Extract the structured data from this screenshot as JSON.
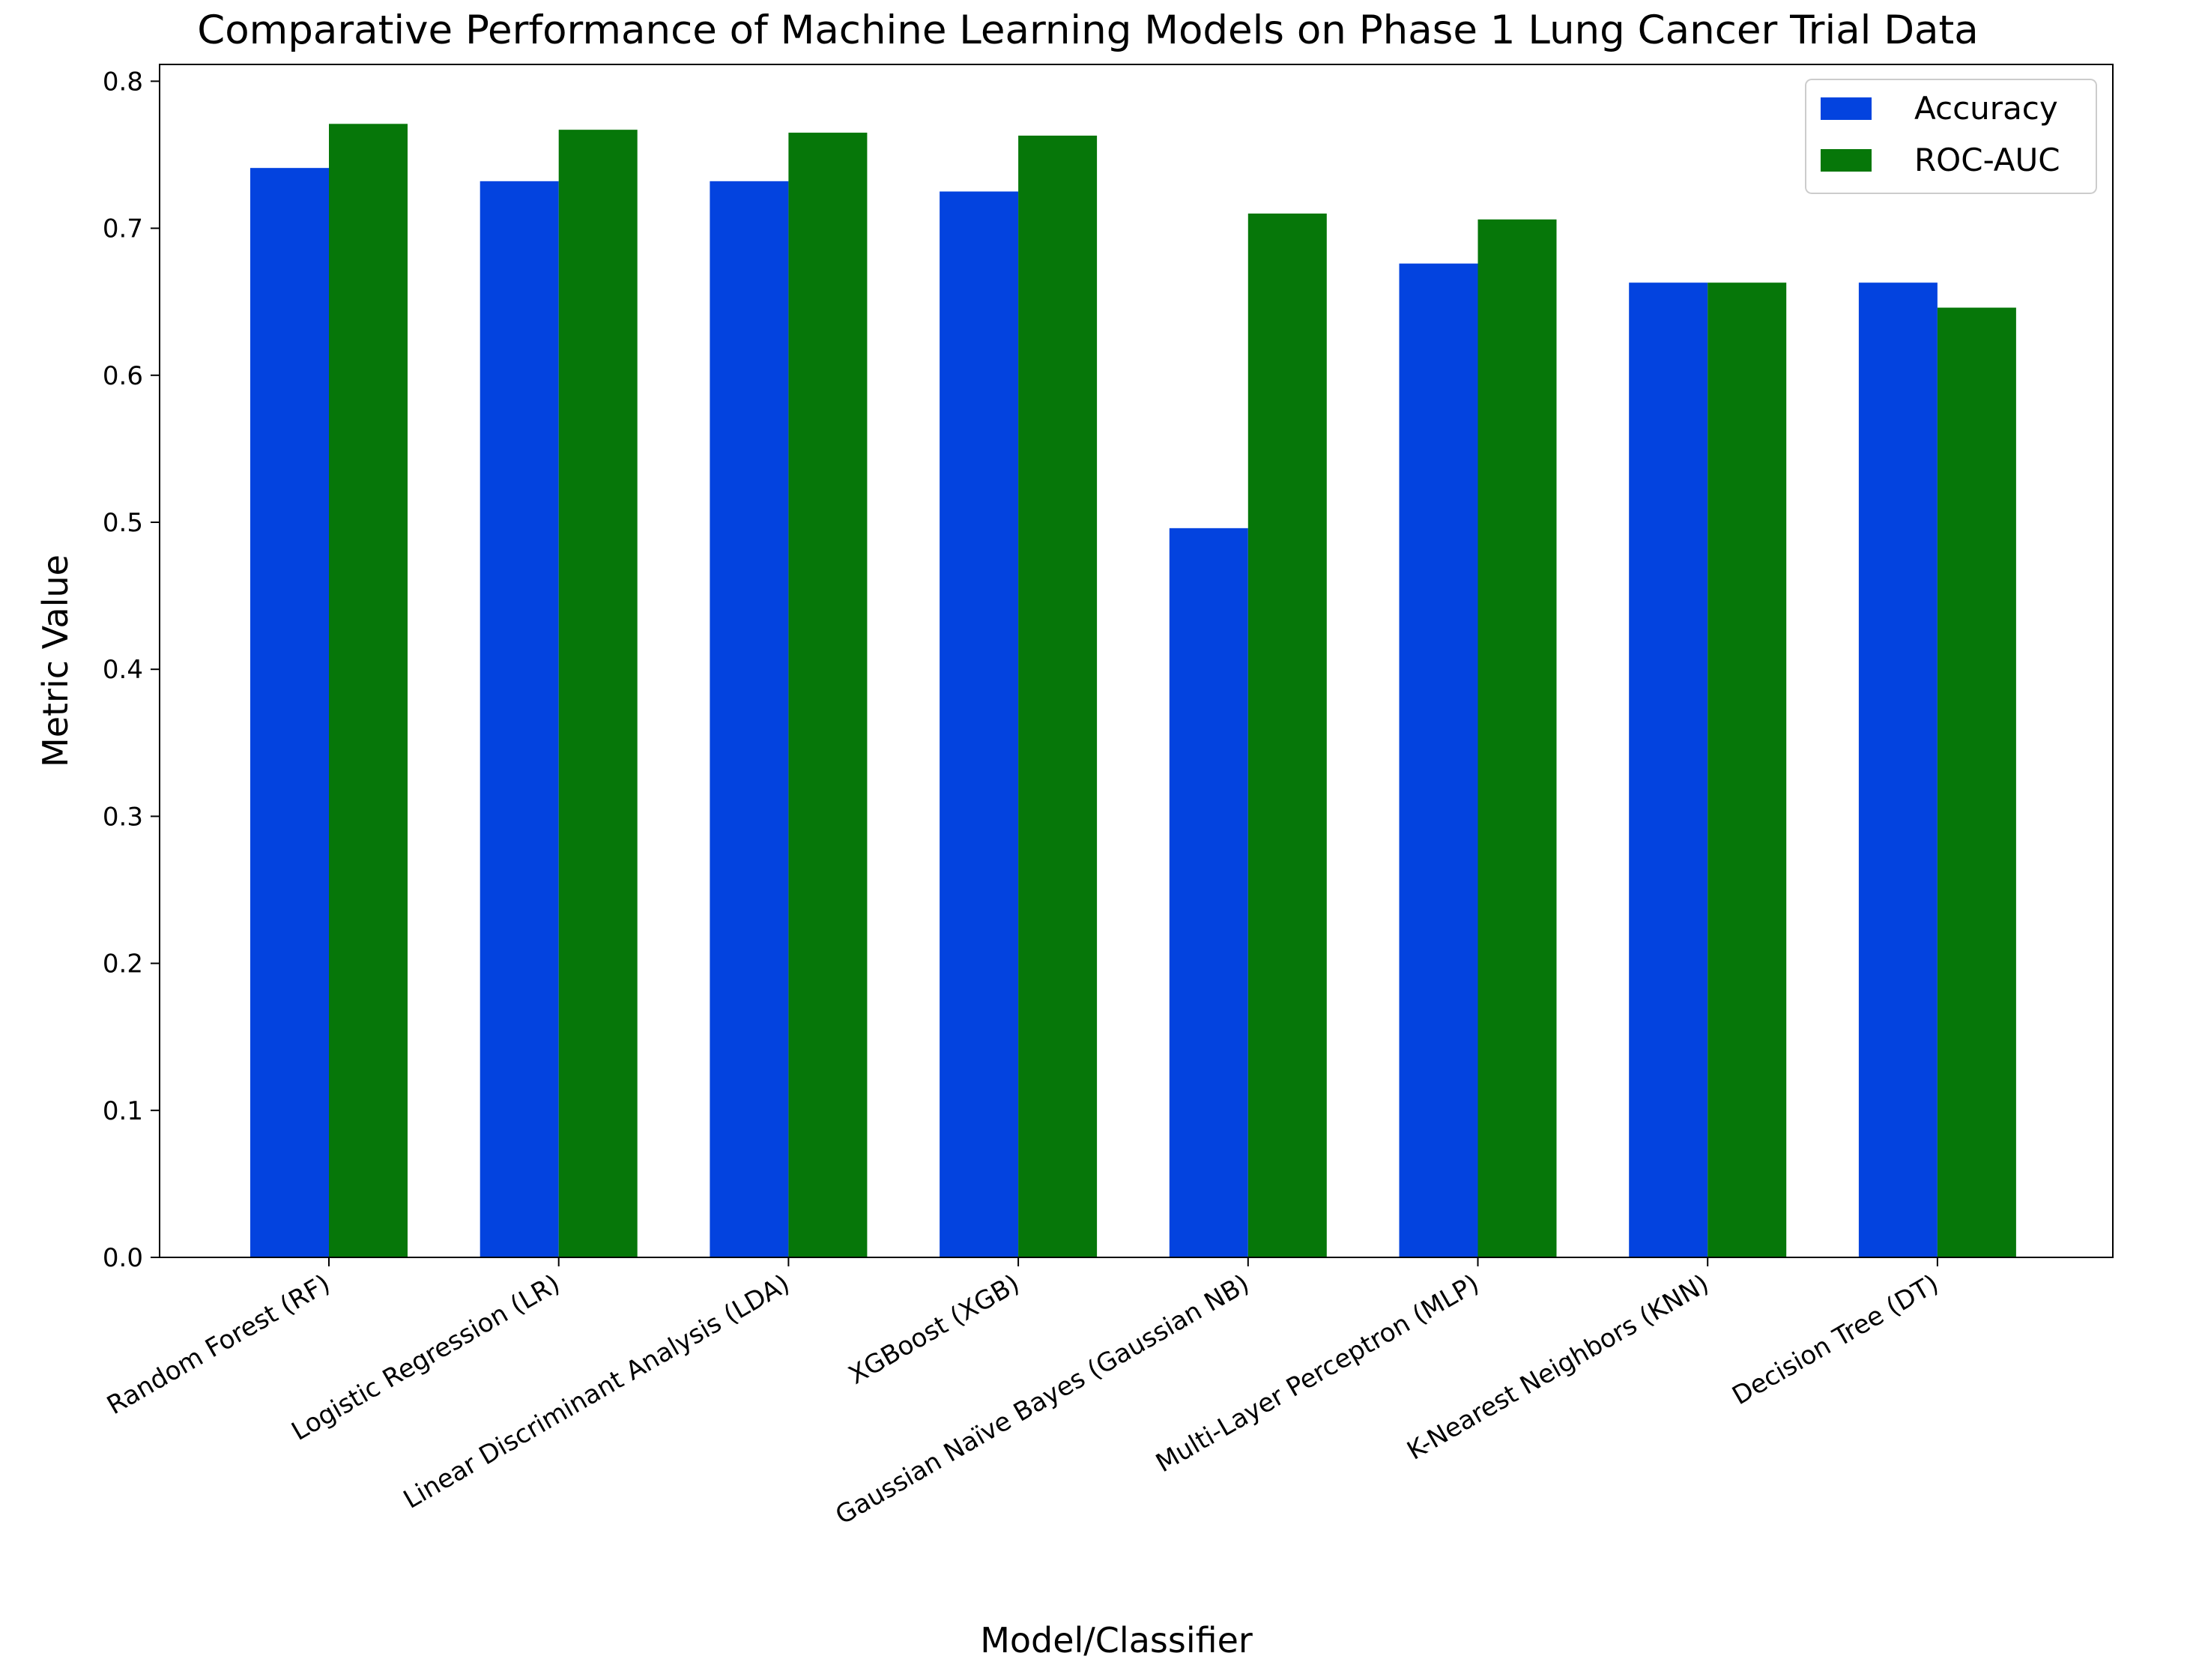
{
  "chart_data": {
    "type": "bar",
    "title": "Comparative Performance of Machine Learning Models on Phase 1 Lung Cancer Trial Data",
    "xlabel": "Model/Classifier",
    "ylabel": "Metric Value",
    "ylim": [
      0,
      0.81
    ],
    "yticks": [
      "0.0",
      "0.1",
      "0.2",
      "0.3",
      "0.4",
      "0.5",
      "0.6",
      "0.7",
      "0.8"
    ],
    "categories": [
      "Random Forest (RF)",
      "Logistic Regression (LR)",
      "Linear Discriminant Analysis (LDA)",
      "XGBoost (XGB)",
      "Gaussian Naïve Bayes (Gaussian NB)",
      "Multi-Layer Perceptron (MLP)",
      "K-Nearest Neighbors (KNN)",
      "Decision Tree (DT)"
    ],
    "series": [
      {
        "name": "Accuracy",
        "color": "#0343df",
        "values": [
          0.741,
          0.732,
          0.732,
          0.725,
          0.496,
          0.676,
          0.663,
          0.663
        ]
      },
      {
        "name": "ROC-AUC",
        "color": "#067709",
        "values": [
          0.771,
          0.767,
          0.765,
          0.763,
          0.71,
          0.706,
          0.663,
          0.646
        ]
      }
    ],
    "grid": false,
    "legend_position": "top-right"
  }
}
